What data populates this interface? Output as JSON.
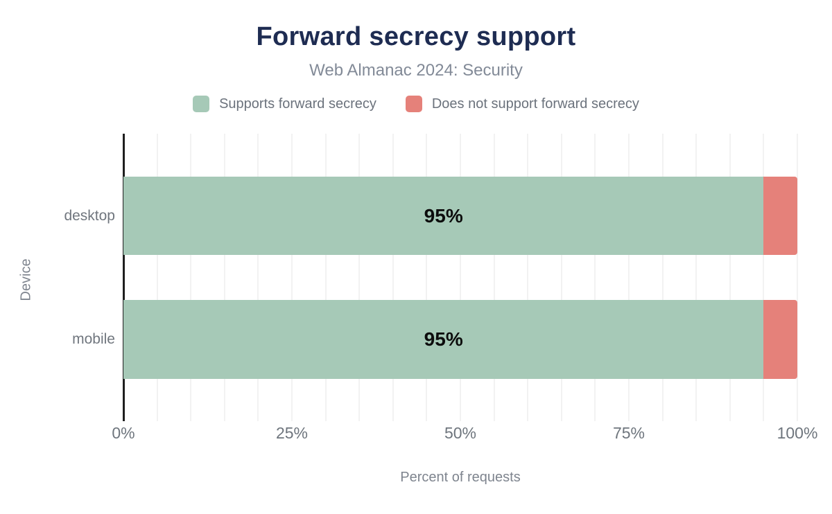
{
  "chart_data": {
    "type": "bar",
    "orientation": "horizontal",
    "stacked": true,
    "title": "Forward secrecy support",
    "subtitle": "Web Almanac 2024: Security",
    "categories": [
      "desktop",
      "mobile"
    ],
    "series": [
      {
        "name": "Supports forward secrecy",
        "color": "#a6c9b7",
        "values": [
          95,
          95
        ],
        "data_labels": [
          "95%",
          "95%"
        ]
      },
      {
        "name": "Does not support forward secrecy",
        "color": "#e5817a",
        "values": [
          5,
          5
        ],
        "data_labels": [
          "",
          ""
        ]
      }
    ],
    "xlabel": "Percent of requests",
    "ylabel": "Device",
    "xlim": [
      0,
      100
    ],
    "xticks": [
      "0%",
      "25%",
      "50%",
      "75%",
      "100%"
    ],
    "minor_grid_step_percent": 5,
    "grid": "vertical",
    "legend_position": "top"
  },
  "colors": {
    "title_text": "#1e2c52",
    "subtitle_text": "#828a97",
    "legend_text": "#6b727c",
    "axis_text": "#6e757d",
    "axis_line": "#1f1f1f",
    "gridline": "#f2f2f2",
    "bar_label_text": "#0c0c0c",
    "background": "#ffffff"
  }
}
